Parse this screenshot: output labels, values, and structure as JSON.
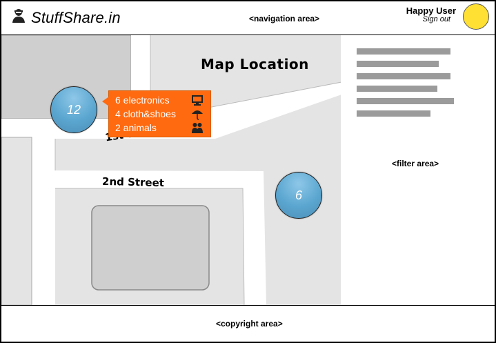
{
  "header": {
    "logo_text": "StuffShare.in",
    "nav_label": "<navigation area>",
    "user_name": "Happy User",
    "sign_out": "Sign out",
    "avatar_color": "#ffe033"
  },
  "map": {
    "title": "Map Location",
    "street_1": "1st Street",
    "street_2": "2nd Street",
    "clusters": [
      {
        "count": "12"
      },
      {
        "count": "6"
      }
    ],
    "popup": {
      "items": [
        {
          "label": "6 electronics",
          "icon": "monitor-icon"
        },
        {
          "label": "4 cloth&shoes",
          "icon": "umbrella-icon"
        },
        {
          "label": "2 animals",
          "icon": "people-icon"
        }
      ],
      "color": "#ff6a10"
    },
    "cluster_color": "#5aa6d0"
  },
  "filter": {
    "label": "<filter area>"
  },
  "footer": {
    "label": "<copyright area>"
  }
}
